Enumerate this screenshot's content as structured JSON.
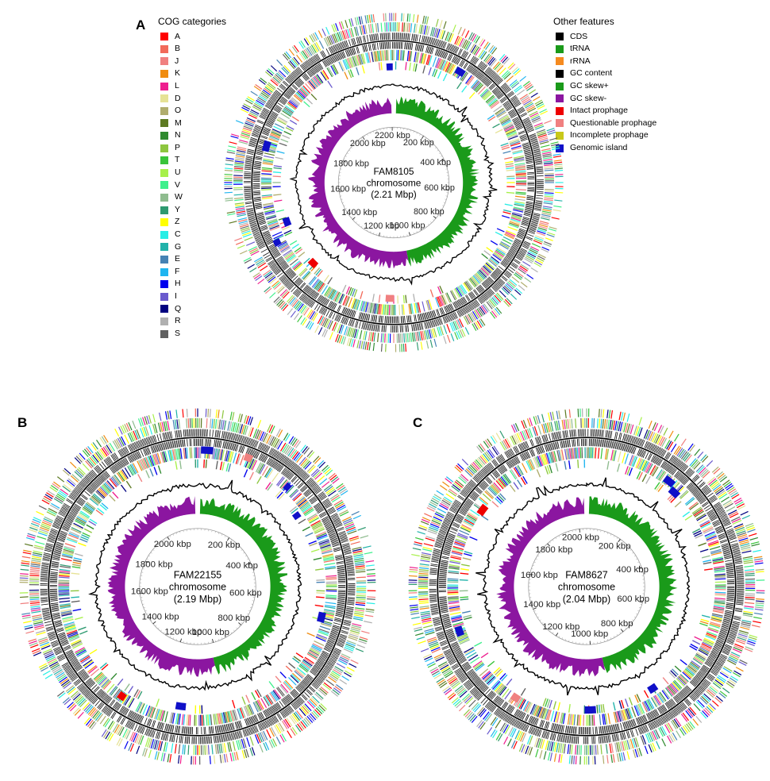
{
  "cog_legend": {
    "title": "COG categories",
    "items": [
      {
        "code": "A",
        "color": "#ff0000"
      },
      {
        "code": "B",
        "color": "#f26a5a"
      },
      {
        "code": "J",
        "color": "#f08080"
      },
      {
        "code": "K",
        "color": "#f08c10"
      },
      {
        "code": "L",
        "color": "#ee1f8f"
      },
      {
        "code": "D",
        "color": "#e6e296"
      },
      {
        "code": "O",
        "color": "#b0ad6d"
      },
      {
        "code": "M",
        "color": "#5d7a22"
      },
      {
        "code": "N",
        "color": "#2f8a2f"
      },
      {
        "code": "P",
        "color": "#8dc63f"
      },
      {
        "code": "T",
        "color": "#39c43a"
      },
      {
        "code": "U",
        "color": "#a7f04a"
      },
      {
        "code": "V",
        "color": "#3ef08c"
      },
      {
        "code": "W",
        "color": "#8fbc8f"
      },
      {
        "code": "Y",
        "color": "#2e9a70"
      },
      {
        "code": "Z",
        "color": "#ffff00"
      },
      {
        "code": "C",
        "color": "#28eee6"
      },
      {
        "code": "G",
        "color": "#20b2aa"
      },
      {
        "code": "E",
        "color": "#4682b4"
      },
      {
        "code": "F",
        "color": "#1fb5f0"
      },
      {
        "code": "H",
        "color": "#0000ee"
      },
      {
        "code": "I",
        "color": "#6a5acd"
      },
      {
        "code": "Q",
        "color": "#000080"
      },
      {
        "code": "R",
        "color": "#b0b0b0"
      },
      {
        "code": "S",
        "color": "#606060"
      }
    ]
  },
  "features_legend": {
    "title": "Other features",
    "items": [
      {
        "label": "CDS",
        "color": "#000000"
      },
      {
        "label": "tRNA",
        "color": "#1a9a1a"
      },
      {
        "label": "rRNA",
        "color": "#f58a1f"
      },
      {
        "label": "GC content",
        "color": "#000000"
      },
      {
        "label": "GC skew+",
        "color": "#1a9a1a"
      },
      {
        "label": "GC skew-",
        "color": "#8b16a0"
      },
      {
        "label": "Intact prophage",
        "color": "#ee0000"
      },
      {
        "label": "Questionable prophage",
        "color": "#f08080"
      },
      {
        "label": "Incomplete prophage",
        "color": "#c8c81a"
      },
      {
        "label": "Genomic island",
        "color": "#1010c8"
      }
    ]
  },
  "panels": [
    {
      "label": "A",
      "center_line1": "FAM8105",
      "center_line2": "chromosome",
      "center_line3": "(2.21 Mbp)",
      "genome_kbp": 2210,
      "ticks": [
        "200 kbp",
        "400 kbp",
        "600 kbp",
        "800 kbp",
        "1000 kbp",
        "1200 kbp",
        "1400 kbp",
        "1600 kbp",
        "1800 kbp",
        "2000 kbp",
        "2200 kbp"
      ],
      "tick_values": [
        200,
        400,
        600,
        800,
        1000,
        1200,
        1400,
        1600,
        1800,
        2000,
        2200
      ],
      "skew_switch_kbp": 1040
    },
    {
      "label": "B",
      "center_line1": "FAM22155",
      "center_line2": "chromosome",
      "center_line3": "(2.19 Mbp)",
      "genome_kbp": 2190,
      "ticks": [
        "200 kbp",
        "400 kbp",
        "600 kbp",
        "800 kbp",
        "1000 kbp",
        "1200 kbp",
        "1400 kbp",
        "1600 kbp",
        "1800 kbp",
        "2000 kbp"
      ],
      "tick_values": [
        200,
        400,
        600,
        800,
        1000,
        1200,
        1400,
        1600,
        1800,
        2000
      ],
      "skew_switch_kbp": 1020
    },
    {
      "label": "C",
      "center_line1": "FAM8627",
      "center_line2": "chromosome",
      "center_line3": "(2.04 Mbp)",
      "genome_kbp": 2040,
      "ticks": [
        "200 kbp",
        "400 kbp",
        "600 kbp",
        "800 kbp",
        "1000 kbp",
        "1200 kbp",
        "1400 kbp",
        "1600 kbp",
        "1800 kbp",
        "2000 kbp"
      ],
      "tick_values": [
        200,
        400,
        600,
        800,
        1000,
        1200,
        1400,
        1600,
        1800,
        2000
      ],
      "skew_switch_kbp": 950
    }
  ]
}
